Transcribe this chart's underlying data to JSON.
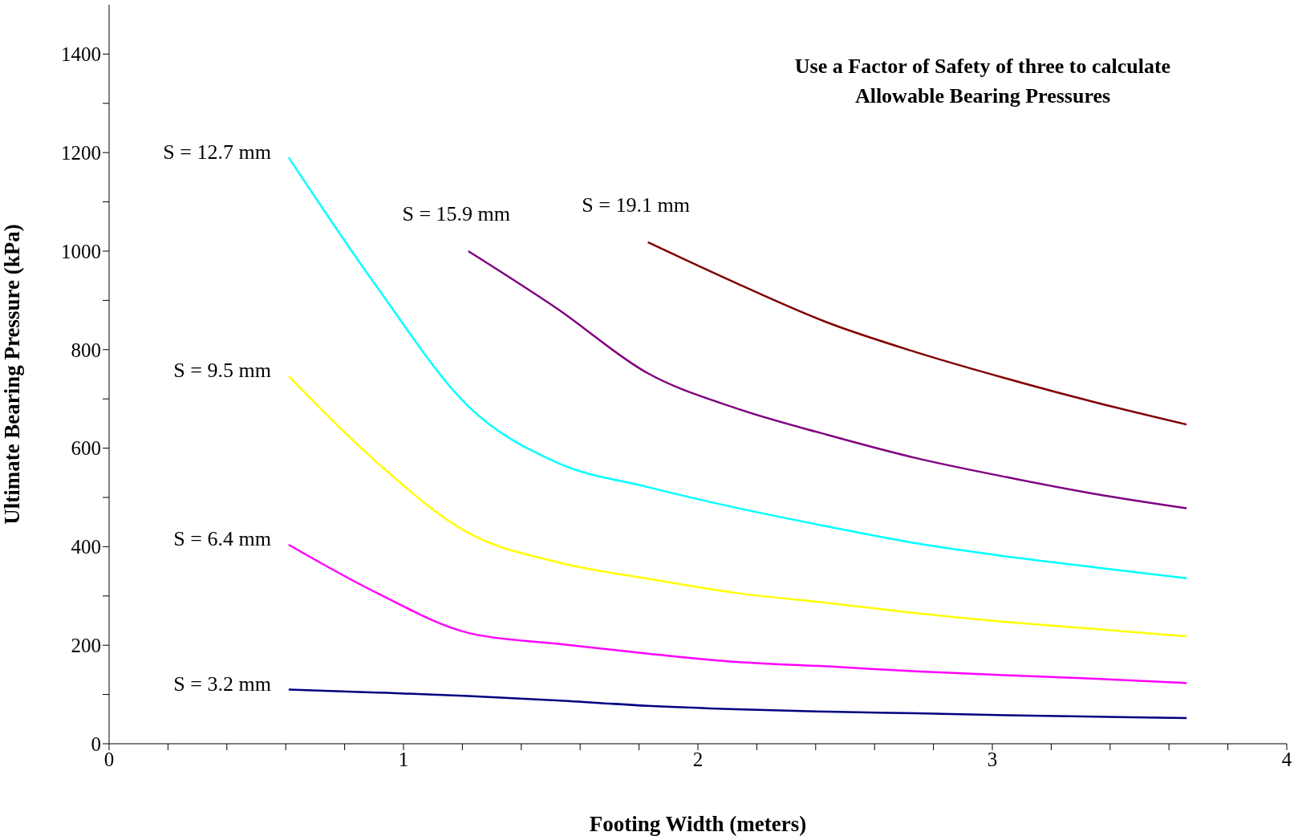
{
  "chart_data": {
    "type": "line",
    "xlabel": "Footing Width (meters)",
    "ylabel": "Ultimate Bearing Pressure (kPa)",
    "xlim": [
      0,
      4
    ],
    "ylim": [
      0,
      1500
    ],
    "xticks": [
      0,
      {
        "value": 0.2,
        "label": null
      },
      {
        "value": 0.4,
        "label": null
      },
      {
        "value": 0.6,
        "label": null
      },
      {
        "value": 0.8,
        "label": null
      },
      1,
      {
        "value": 1.2,
        "label": null
      },
      {
        "value": 1.4,
        "label": null
      },
      {
        "value": 1.6,
        "label": null
      },
      {
        "value": 1.8,
        "label": null
      },
      2,
      {
        "value": 2.2,
        "label": null
      },
      {
        "value": 2.4,
        "label": null
      },
      {
        "value": 2.6,
        "label": null
      },
      {
        "value": 2.8,
        "label": null
      },
      3,
      {
        "value": 3.2,
        "label": null
      },
      {
        "value": 3.4,
        "label": null
      },
      {
        "value": 3.6,
        "label": null
      },
      {
        "value": 3.8,
        "label": null
      },
      4
    ],
    "yticks": [
      0,
      {
        "value": 100,
        "label": null
      },
      200,
      {
        "value": 300,
        "label": null
      },
      400,
      {
        "value": 500,
        "label": null
      },
      600,
      {
        "value": 700,
        "label": null
      },
      800,
      {
        "value": 900,
        "label": null
      },
      1000,
      {
        "value": 1100,
        "label": null
      },
      1200,
      {
        "value": 1300,
        "label": null
      },
      1400
    ],
    "grid": false,
    "legend": false,
    "marker": "none",
    "line_style": "solid",
    "series": [
      {
        "name": "S = 3.2 mm",
        "color": "#000080",
        "x": [
          0.61,
          0.91,
          1.22,
          1.52,
          1.83,
          2.13,
          2.44,
          2.74,
          3.05,
          3.35,
          3.66
        ],
        "values": [
          110,
          104,
          97,
          88,
          77,
          70,
          65,
          62,
          58,
          55,
          52
        ]
      },
      {
        "name": "S = 6.4 mm",
        "color": "#ff00ff",
        "x": [
          0.61,
          0.91,
          1.22,
          1.52,
          1.83,
          2.13,
          2.44,
          2.74,
          3.05,
          3.35,
          3.66
        ],
        "values": [
          404,
          306,
          225,
          203,
          183,
          166,
          157,
          147,
          139,
          132,
          123
        ]
      },
      {
        "name": "S = 9.5 mm",
        "color": "#ffff00",
        "x": [
          0.61,
          0.91,
          1.22,
          1.52,
          1.83,
          2.13,
          2.44,
          2.74,
          3.05,
          3.35,
          3.66
        ],
        "values": [
          746,
          571,
          428,
          369,
          335,
          306,
          286,
          265,
          247,
          233,
          218
        ]
      },
      {
        "name": "S = 12.7 mm",
        "color": "#00ffff",
        "x": [
          0.61,
          0.91,
          1.22,
          1.52,
          1.83,
          2.13,
          2.44,
          2.74,
          3.05,
          3.35,
          3.66
        ],
        "values": [
          1190,
          927,
          685,
          571,
          521,
          479,
          441,
          407,
          380,
          358,
          336
        ]
      },
      {
        "name": "S = 15.9 mm",
        "color": "#800080",
        "x": [
          1.22,
          1.52,
          1.83,
          2.13,
          2.44,
          2.74,
          3.05,
          3.35,
          3.66
        ],
        "values": [
          1000,
          884,
          752,
          681,
          627,
          580,
          541,
          507,
          478
        ]
      },
      {
        "name": "S = 19.1 mm",
        "color": "#800000",
        "x": [
          1.83,
          2.13,
          2.44,
          2.74,
          3.05,
          3.35,
          3.66
        ],
        "values": [
          1018,
          935,
          855,
          795,
          741,
          693,
          648
        ]
      }
    ],
    "annotations": [
      "Use a Factor of Safety of three to calculate Allowable Bearing Pressures"
    ]
  }
}
